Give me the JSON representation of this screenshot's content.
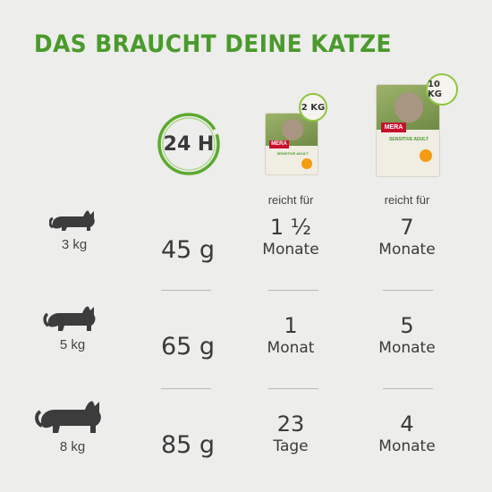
{
  "title": "DAS BRAUCHT DEINE KATZE",
  "badge": "24 H",
  "colors": {
    "accent": "#4a9a2c",
    "text": "#3a3a3a",
    "background": "#ededeb"
  },
  "packages": [
    {
      "size_label": "2 KG",
      "brand": "MERA",
      "variant": "SENSITIVE ADULT",
      "reicht_label": "reicht für"
    },
    {
      "size_label": "10 KG",
      "brand": "MERA",
      "variant": "SENSITIVE ADULT",
      "reicht_label": "reicht für"
    }
  ],
  "rows": [
    {
      "weight": "3 kg",
      "icon": "cat-small-icon",
      "amount": "45 g",
      "pack2_value": "1 ½",
      "pack2_unit": "Monate",
      "pack10_value": "7",
      "pack10_unit": "Monate"
    },
    {
      "weight": "5 kg",
      "icon": "cat-medium-icon",
      "amount": "65 g",
      "pack2_value": "1",
      "pack2_unit": "Monat",
      "pack10_value": "5",
      "pack10_unit": "Monate"
    },
    {
      "weight": "8 kg",
      "icon": "cat-large-icon",
      "amount": "85 g",
      "pack2_value": "23",
      "pack2_unit": "Tage",
      "pack10_value": "4",
      "pack10_unit": "Monate"
    }
  ]
}
